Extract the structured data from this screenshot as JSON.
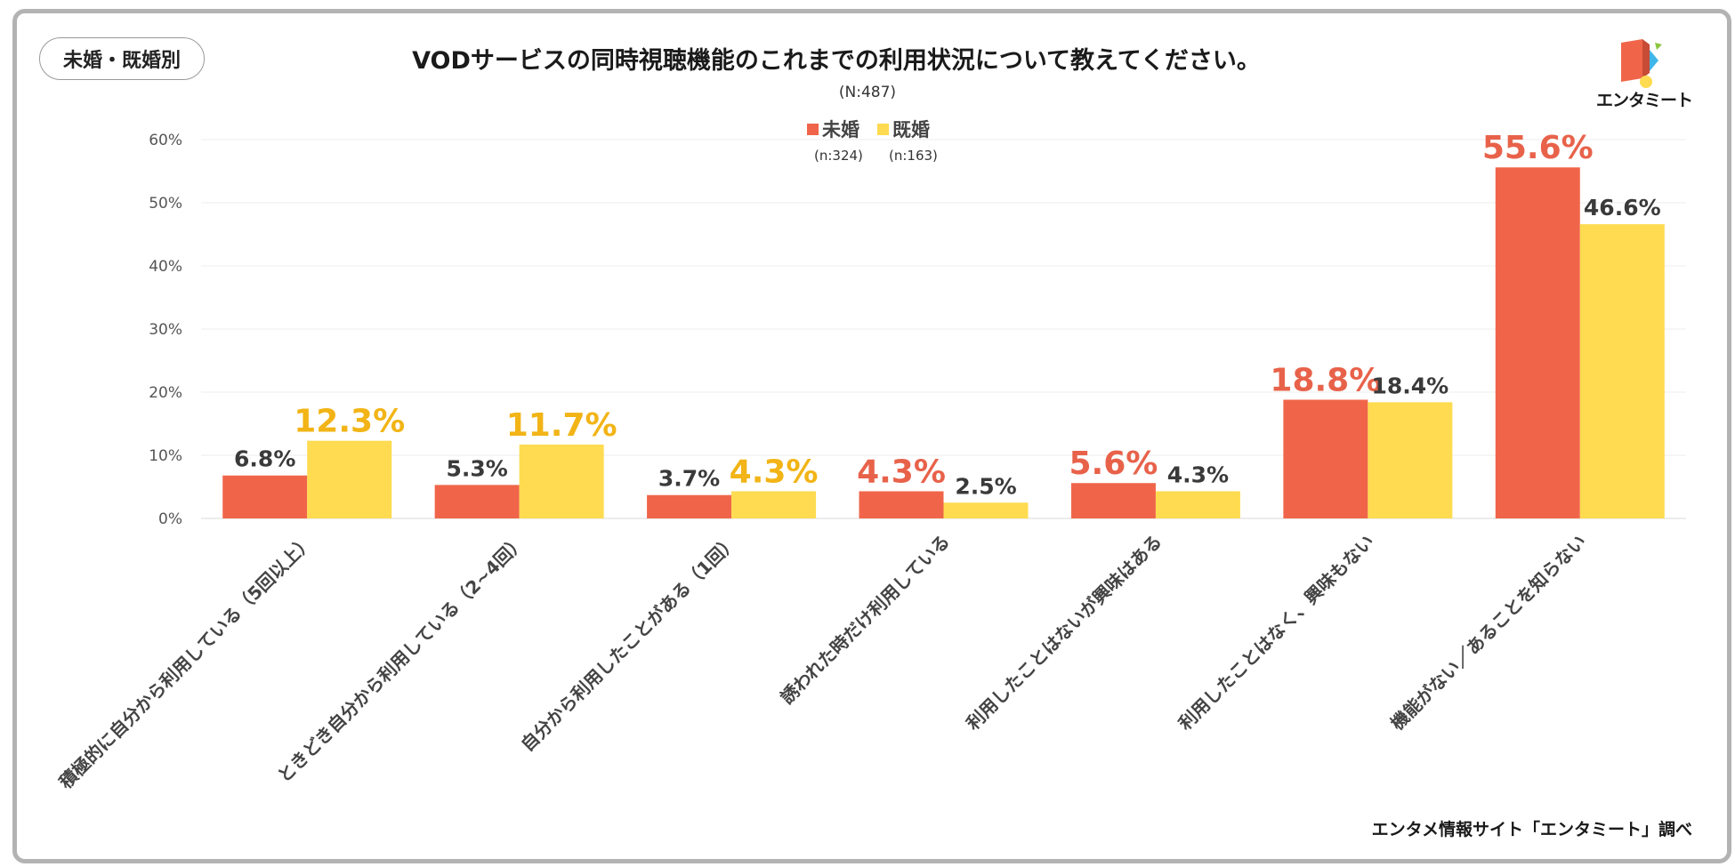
{
  "badge": "未婚・既婚別",
  "title": "VODサービスの同時視聴機能のこれまでの利用状況について教えてください。",
  "sample_size": "(N:487)",
  "logo_text": "エンタミート",
  "source": "エンタメ情報サイト「エンタミート」調べ",
  "colors": {
    "unmarried": "#F0654A",
    "married": "#FEDB50",
    "highlight_unmarried_text": "#E8624A",
    "highlight_married_text": "#F2B416",
    "normal_text": "#3a3a3a"
  },
  "legend": [
    {
      "label": "未婚",
      "n": "(n:324)"
    },
    {
      "label": "既婚",
      "n": "(n:163)"
    }
  ],
  "chart_data": {
    "type": "bar",
    "title": "VODサービスの同時視聴機能のこれまでの利用状況について教えてください。",
    "categories": [
      "積極的に自分から利用している（5回以上）",
      "ときどき自分から利用している（2~4回）",
      "自分から利用したことがある（1回）",
      "誘われた時だけ利用している",
      "利用したことはないが興味はある",
      "利用したことはなく、興味もない",
      "機能がない／あることを知らない"
    ],
    "series": [
      {
        "name": "未婚",
        "values": [
          6.8,
          5.3,
          3.7,
          4.3,
          5.6,
          18.8,
          55.6
        ],
        "labels": [
          "6.8%",
          "5.3%",
          "3.7%",
          "4.3%",
          "5.6%",
          "18.8%",
          "55.6%"
        ],
        "highlight": [
          false,
          false,
          false,
          true,
          true,
          true,
          true
        ]
      },
      {
        "name": "既婚",
        "values": [
          12.3,
          11.7,
          4.3,
          2.5,
          4.3,
          18.4,
          46.6
        ],
        "labels": [
          "12.3%",
          "11.7%",
          "4.3%",
          "2.5%",
          "4.3%",
          "18.4%",
          "46.6%"
        ],
        "highlight": [
          true,
          true,
          true,
          false,
          false,
          false,
          false
        ]
      }
    ],
    "yticks": [
      "0%",
      "10%",
      "20%",
      "30%",
      "40%",
      "50%",
      "60%"
    ],
    "ylim": [
      0,
      60
    ],
    "xlabel": "",
    "ylabel": "",
    "grid": true,
    "legend_position": "top-center"
  }
}
